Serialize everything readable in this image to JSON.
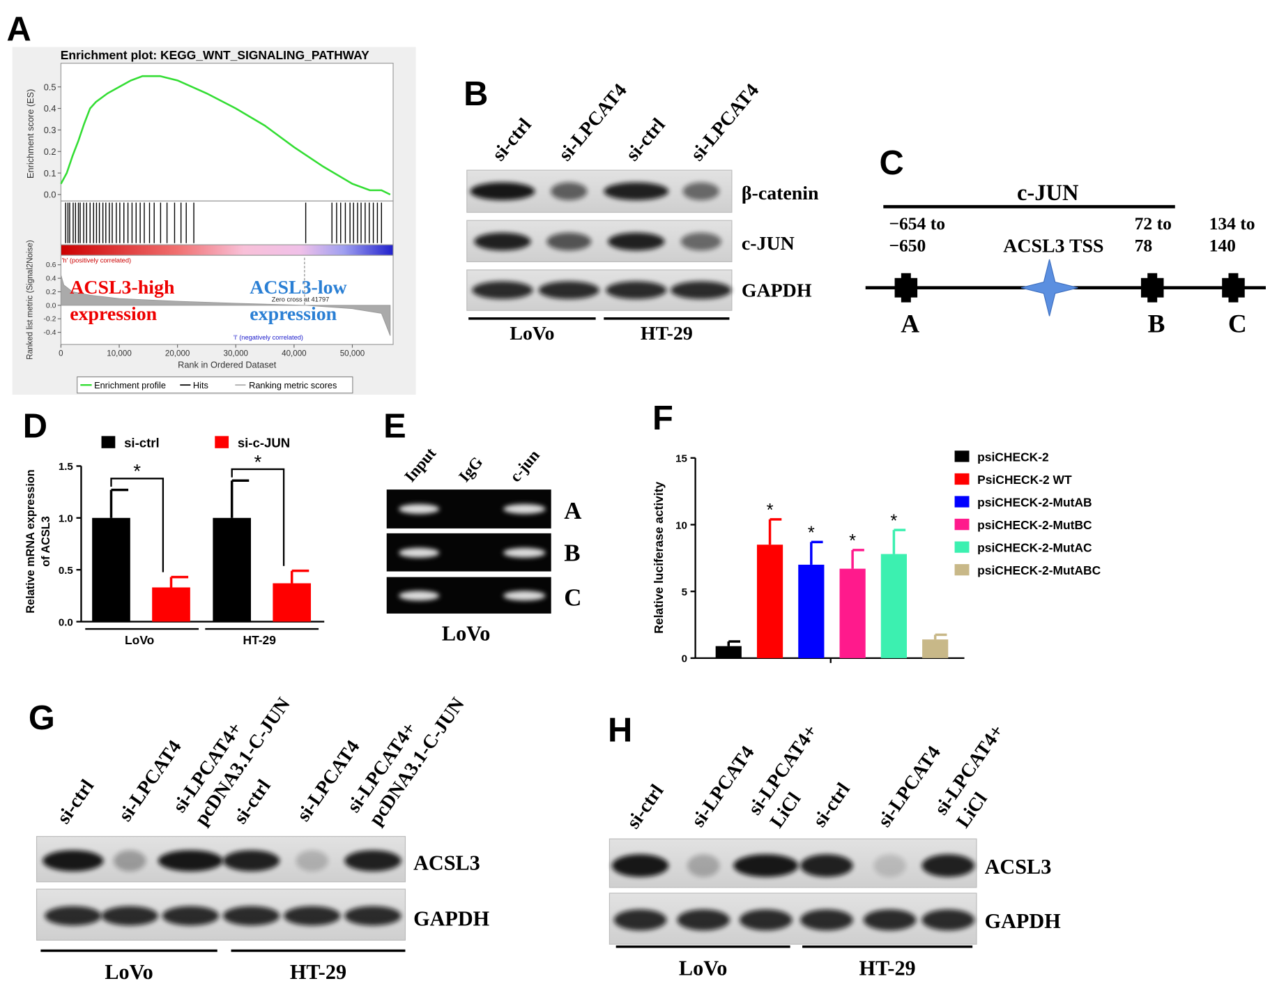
{
  "panel_labels": [
    "A",
    "B",
    "C",
    "D",
    "E",
    "F",
    "G",
    "H"
  ],
  "chart_data": [
    {
      "type": "line",
      "title": "Enrichment plot: KEGG_WNT_SIGNALING_PATHWAY",
      "ylabel": "Enrichment score (ES)",
      "xlabel": "Rank in Ordered Dataset",
      "x": [
        0,
        1000,
        2000,
        3000,
        4000,
        5000,
        6000,
        8000,
        10000,
        12000,
        14000,
        15000,
        17000,
        20000,
        25000,
        30000,
        35000,
        40000,
        45000,
        50000,
        53000,
        55000,
        56500
      ],
      "series": [
        {
          "name": "Enrichment profile",
          "color": "#33dd33",
          "values": [
            0.05,
            0.1,
            0.18,
            0.25,
            0.33,
            0.4,
            0.43,
            0.47,
            0.5,
            0.53,
            0.55,
            0.55,
            0.55,
            0.53,
            0.47,
            0.4,
            0.32,
            0.22,
            0.13,
            0.05,
            0.02,
            0.02,
            0.0
          ]
        }
      ],
      "hits_name": "Hits",
      "hits_color": "#000000",
      "hits": [
        800,
        1200,
        1500,
        2100,
        2500,
        3000,
        3300,
        3900,
        4400,
        5000,
        5600,
        6100,
        6600,
        7200,
        7700,
        8300,
        8800,
        9500,
        10100,
        10800,
        11500,
        12200,
        12900,
        13600,
        14300,
        15200,
        16000,
        17100,
        18200,
        19500,
        20600,
        21500,
        22800,
        42000,
        46500,
        47300,
        48000,
        48800,
        49600,
        50200,
        50900,
        51500,
        52200,
        52900,
        53600,
        54300,
        55000
      ],
      "xlim": [
        0,
        57000
      ],
      "xticks": [
        0,
        {
          "value": 10000,
          "label": "10,000"
        },
        {
          "value": 20000,
          "label": "20,000"
        },
        {
          "value": 30000,
          "label": "30,000"
        },
        {
          "value": 40000,
          "label": "40,000"
        },
        {
          "value": 50000,
          "label": "50,000"
        }
      ],
      "ylim": [
        -0.03,
        0.61
      ],
      "yticks": [
        {
          "value": 0,
          "label": "0.0"
        },
        0.1,
        0.2,
        0.3,
        0.4,
        0.5
      ]
    },
    {
      "type": "area",
      "ylabel": "Ranked list metric (Signal2Noise)",
      "x": [
        0,
        500,
        2000,
        5000,
        10000,
        20000,
        30000,
        41797,
        50000,
        55000,
        56500
      ],
      "series": [
        {
          "name": "Ranking metric scores",
          "color": "#aaaaaa",
          "values": [
            0.45,
            0.3,
            0.2,
            0.15,
            0.1,
            0.06,
            0.03,
            0,
            -0.05,
            -0.12,
            -0.45
          ]
        }
      ],
      "ylim": [
        -0.58,
        0.74
      ],
      "yticks": [
        0.6,
        0.4,
        0.2,
        {
          "value": 0,
          "label": "0.0"
        },
        -0.2,
        -0.4
      ],
      "pos_label": "'h' (positively correlated)",
      "neg_label": "'l' (negatively correlated)",
      "zero_cross": "Zero cross at 41797",
      "zero_cross_x": 41797,
      "high_label": [
        "ACSL3-high",
        "expression"
      ],
      "low_label": [
        "ACSL3-low",
        "expression"
      ]
    },
    {
      "type": "bar",
      "ylabel": [
        "Relative mRNA expression",
        "of ACSL3"
      ],
      "categories": [
        "LoVo",
        "HT-29"
      ],
      "series": [
        {
          "name": "si-ctrl",
          "color": "#000000",
          "values": [
            1.0,
            1.0
          ],
          "errors": [
            0.27,
            0.36
          ]
        },
        {
          "name": "si-c-JUN",
          "color": "#ff0000",
          "values": [
            0.33,
            0.37
          ],
          "errors": [
            0.1,
            0.12
          ]
        }
      ],
      "ylim": [
        0,
        1.5
      ],
      "yticks": [
        {
          "value": 0,
          "label": "0.0"
        },
        0.5,
        {
          "value": 1,
          "label": "1.0"
        },
        1.5
      ],
      "significance": [
        "*",
        "*"
      ]
    },
    {
      "type": "bar",
      "ylabel": "Relative luciferase activity",
      "categories": [
        null
      ],
      "series": [
        {
          "name": "psiCHECK-2",
          "color": "#000000",
          "values": [
            0.9
          ],
          "errors": [
            0.35
          ]
        },
        {
          "name": "PsiCHECK-2 WT",
          "color": "#ff0000",
          "values": [
            8.5
          ],
          "errors": [
            1.9
          ],
          "annotation": "*"
        },
        {
          "name": "psiCHECK-2-MutAB",
          "color": "#0000ff",
          "values": [
            7.0
          ],
          "errors": [
            1.7
          ],
          "annotation": "*"
        },
        {
          "name": "psiCHECK-2-MutBC",
          "color": "#ff1a8c",
          "values": [
            6.7
          ],
          "errors": [
            1.4
          ],
          "annotation": "*"
        },
        {
          "name": "psiCHECK-2-MutAC",
          "color": "#3cf0b0",
          "values": [
            7.8
          ],
          "errors": [
            1.8
          ],
          "annotation": "*"
        },
        {
          "name": "psiCHECK-2-MutABC",
          "color": "#c8b888",
          "values": [
            1.4
          ],
          "errors": [
            0.35
          ]
        }
      ],
      "ylim": [
        0,
        15
      ],
      "yticks": [
        0,
        5,
        10,
        15
      ]
    }
  ],
  "blots": {
    "B": {
      "lanes": [
        [
          "si-ctrl"
        ],
        [
          "si-LPCAT4"
        ],
        [
          "si-ctrl"
        ],
        [
          "si-LPCAT4"
        ]
      ],
      "rows": [
        "β-catenin",
        "c-JUN",
        "GAPDH"
      ],
      "groups": [
        "LoVo",
        "HT-29"
      ]
    },
    "E": {
      "lanes": [
        [
          "Input"
        ],
        [
          "IgG"
        ],
        [
          "c-jun"
        ]
      ],
      "rows": [
        "A",
        "B",
        "C"
      ],
      "groups": [
        "LoVo"
      ]
    },
    "G": {
      "lanes": [
        [
          "si-ctrl"
        ],
        [
          "si-LPCAT4"
        ],
        [
          "si-LPCAT4+",
          "pcDNA3.1-C-JUN"
        ],
        [
          "si-ctrl"
        ],
        [
          "si-LPCAT4"
        ],
        [
          "si-LPCAT4+",
          "pcDNA3.1-C-JUN"
        ]
      ],
      "rows": [
        "ACSL3",
        "GAPDH"
      ],
      "groups": [
        "LoVo",
        "HT-29"
      ]
    },
    "H": {
      "lanes": [
        [
          "si-ctrl"
        ],
        [
          "si-LPCAT4"
        ],
        [
          "si-LPCAT4+",
          "LiCl"
        ],
        [
          "si-ctrl"
        ],
        [
          "si-LPCAT4"
        ],
        [
          "si-LPCAT4+",
          "LiCl"
        ]
      ],
      "rows": [
        "ACSL3",
        "GAPDH"
      ],
      "groups": [
        "LoVo",
        "HT-29"
      ]
    }
  },
  "diagram": {
    "title": "c-JUN",
    "tss": "ACSL3 TSS",
    "sites": [
      {
        "label": [
          "−654 to",
          "−650"
        ],
        "name": "A"
      },
      {
        "label": [
          "72 to",
          "78"
        ],
        "name": "B"
      },
      {
        "label": [
          "134 to",
          "140"
        ],
        "name": "C"
      }
    ]
  }
}
